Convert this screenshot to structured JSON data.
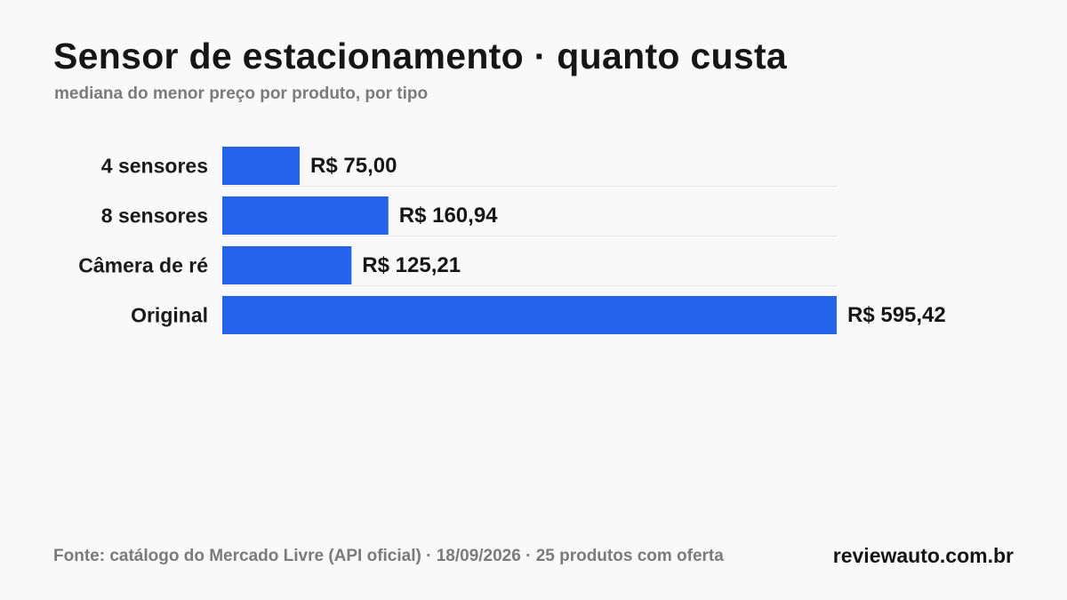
{
  "header": {
    "title": "Sensor de estacionamento · quanto custa",
    "subtitle": "mediana do menor preço por produto, por tipo"
  },
  "footer": {
    "source": "Fonte: catálogo do Mercado Livre (API oficial) · 18/09/2026 · 25 produtos com oferta",
    "brand": "reviewauto.com.br"
  },
  "colors": {
    "bar": "#2563eb",
    "separator": "#e4e4e7",
    "category_text": "#1a1a1a",
    "value_text": "#161616"
  },
  "chart_data": {
    "type": "bar",
    "orientation": "horizontal",
    "title": "Sensor de estacionamento · quanto custa",
    "subtitle": "mediana do menor preço por produto, por tipo",
    "categories": [
      "4 sensores",
      "8 sensores",
      "Câmera de ré",
      "Original"
    ],
    "values": [
      75.0,
      160.94,
      125.21,
      595.42
    ],
    "value_labels": [
      "R$ 75,00",
      "R$ 160,94",
      "R$ 125,21",
      "R$ 595,42"
    ],
    "unit": "R$",
    "xlim": [
      0,
      595.42
    ],
    "grid": false,
    "legend": "none"
  }
}
